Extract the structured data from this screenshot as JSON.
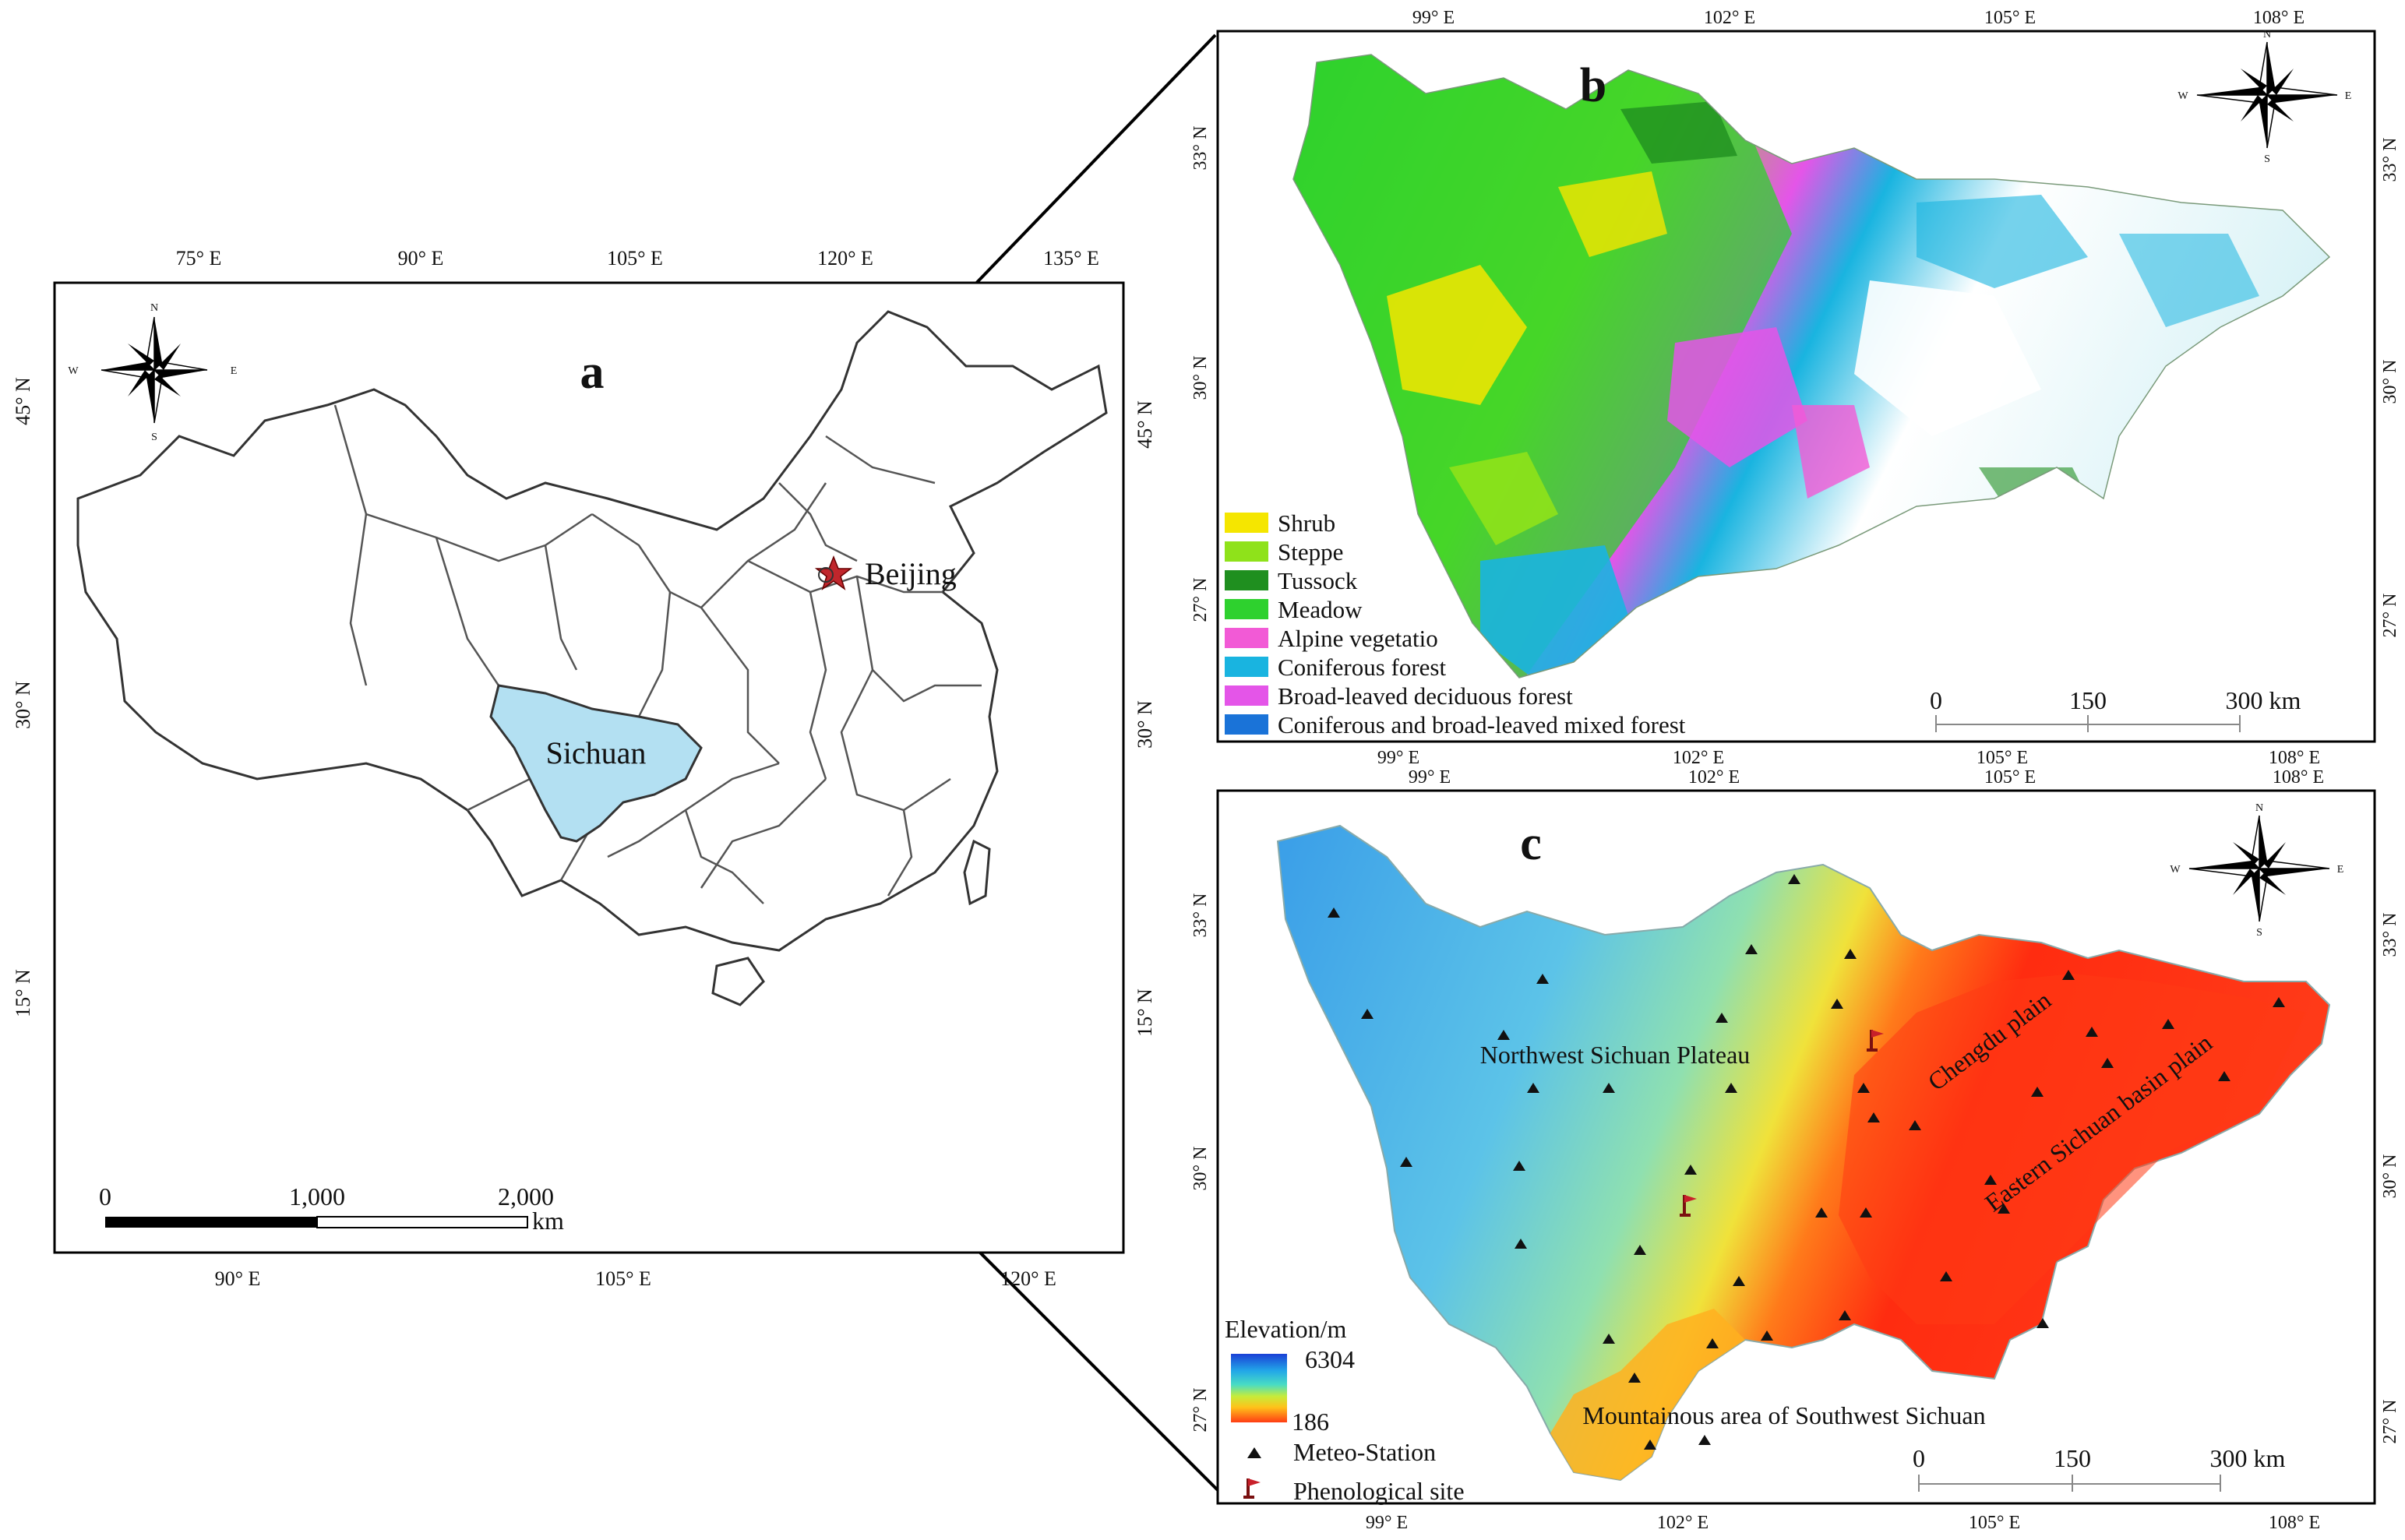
{
  "panels": {
    "a": {
      "letter": "a",
      "top_ticks": [
        "75° E",
        "90° E",
        "105° E",
        "120° E",
        "135° E"
      ],
      "bottom_ticks": [
        "90° E",
        "105° E",
        "120° E"
      ],
      "left_ticks": [
        "45° N",
        "30° N",
        "15° N"
      ],
      "right_ticks": [
        "45° N",
        "30° N",
        "15° N"
      ],
      "province_label": "Sichuan",
      "capital_label": "Beijing",
      "scale_labels": [
        "0",
        "1,000",
        "2,000"
      ],
      "scale_unit": "km",
      "compass": {
        "n": "N",
        "s": "S",
        "e": "E",
        "w": "W"
      },
      "highlight_color": "#b3e0f2"
    },
    "b": {
      "letter": "b",
      "top_ticks": [
        "99° E",
        "102° E",
        "105° E",
        "108° E"
      ],
      "bottom_ticks": [
        "99° E",
        "102° E",
        "105° E",
        "108° E"
      ],
      "left_ticks": [
        "33° N",
        "30° N",
        "27° N"
      ],
      "right_ticks": [
        "33° N",
        "30° N",
        "27° N"
      ],
      "scale_labels": [
        "0",
        "150",
        "300 km"
      ],
      "compass": {
        "n": "N",
        "s": "S",
        "e": "E",
        "w": "W"
      },
      "legend": [
        {
          "label": "Shrub",
          "color": "#f5e600"
        },
        {
          "label": "Steppe",
          "color": "#8fe21a"
        },
        {
          "label": "Tussock",
          "color": "#1f8f1f"
        },
        {
          "label": "Meadow",
          "color": "#2ed12e"
        },
        {
          "label": "Alpine vegetatio",
          "color": "#f25ad6"
        },
        {
          "label": "Coniferous forest",
          "color": "#19b4e0"
        },
        {
          "label": "Broad-leaved deciduous forest",
          "color": "#e455e8"
        },
        {
          "label": "Coniferous and broad-leaved mixed forest",
          "color": "#1a73d8"
        }
      ]
    },
    "c": {
      "letter": "c",
      "top_ticks": [
        "99° E",
        "102° E",
        "105° E",
        "108° E"
      ],
      "bottom_ticks": [
        "99° E",
        "102° E",
        "105° E",
        "108° E"
      ],
      "left_ticks": [
        "33° N",
        "30° N",
        "27° N"
      ],
      "right_ticks": [
        "33° N",
        "30° N",
        "27° N"
      ],
      "scale_labels": [
        "0",
        "150",
        "300 km"
      ],
      "compass": {
        "n": "N",
        "s": "S",
        "e": "E",
        "w": "W"
      },
      "region_labels": {
        "northwest": "Northwest Sichuan Plateau",
        "chengdu": "Chengdu plain",
        "eastern": "Eastern Sichuan basin plain",
        "southwest": "Mountainous area of Southwest Sichuan"
      },
      "elevation": {
        "title": "Elevation/m",
        "max": "6304",
        "min": "186"
      },
      "legend": {
        "station": "Meteo-Station",
        "pheno": "Phenological site"
      }
    }
  }
}
